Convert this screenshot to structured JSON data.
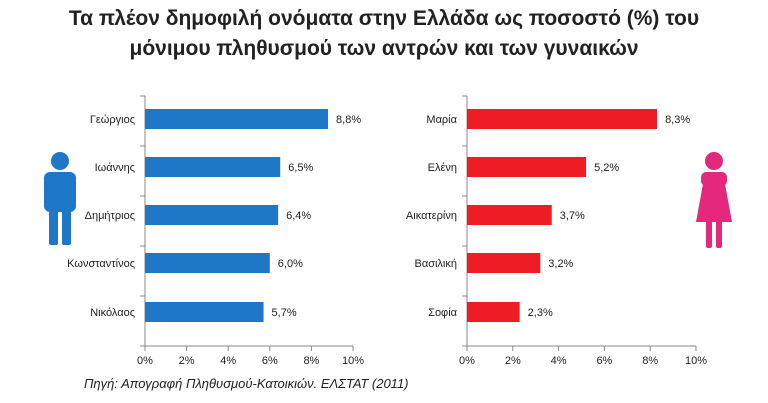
{
  "title": {
    "line1": "Τα πλέον δημοφιλή ονόματα στην Ελλάδα ως ποσοστό (%) του",
    "line2": "μόνιμου πληθυσμού των αντρών και των γυναικών"
  },
  "source": "Πηγή: Απογραφή Πληθυσμού-Κατοικιών. ΕΛΣΤΑΤ (2011)",
  "icons": {
    "male": "male-person-icon",
    "female": "female-person-icon"
  },
  "chart_data": [
    {
      "type": "bar",
      "orientation": "horizontal",
      "categories": [
        "Γεώργιος",
        "Ιωάννης",
        "Δημήτριος",
        "Κωνσταντίνος",
        "Νικόλαος"
      ],
      "values": [
        8.8,
        6.5,
        6.4,
        6.0,
        5.7
      ],
      "value_labels": [
        "8,8%",
        "6,5%",
        "6,4%",
        "6,0%",
        "5,7%"
      ],
      "xlim": [
        0,
        10
      ],
      "ticks": [
        "0%",
        "2%",
        "4%",
        "6%",
        "8%",
        "10%"
      ],
      "color": "#1f77c8",
      "grid": false
    },
    {
      "type": "bar",
      "orientation": "horizontal",
      "categories": [
        "Μαρία",
        "Ελένη",
        "Αικατερίνη",
        "Βασιλική",
        "Σοφία"
      ],
      "values": [
        8.3,
        5.2,
        3.7,
        3.2,
        2.3
      ],
      "value_labels": [
        "8,3%",
        "5,2%",
        "3,7%",
        "3,2%",
        "2,3%"
      ],
      "xlim": [
        0,
        10
      ],
      "ticks": [
        "0%",
        "2%",
        "4%",
        "6%",
        "8%",
        "10%"
      ],
      "color": "#ee1c24",
      "grid": false
    }
  ]
}
